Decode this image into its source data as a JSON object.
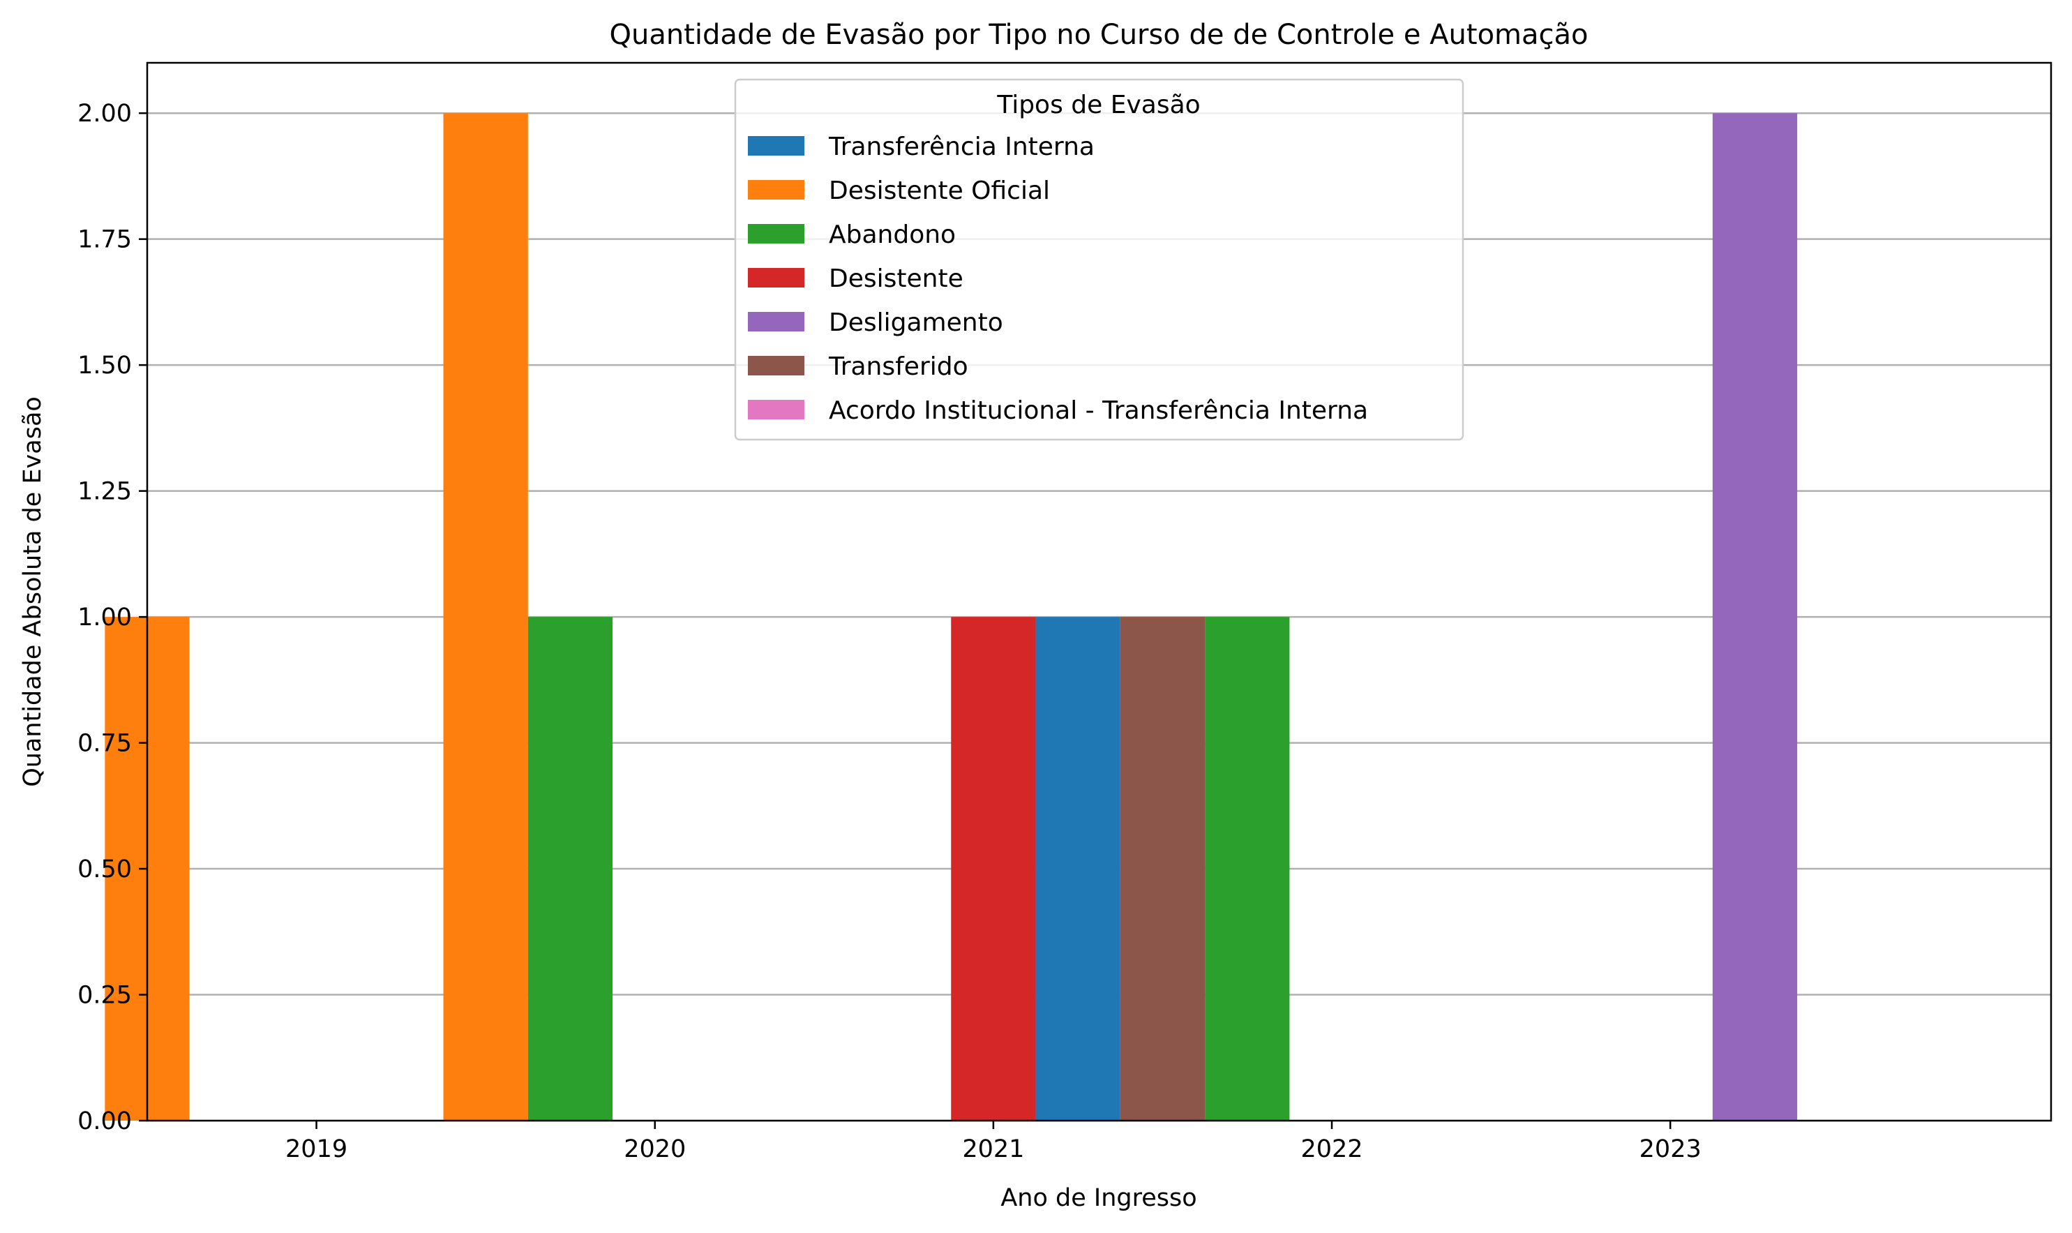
{
  "chart_data": {
    "type": "bar",
    "title": "Quantidade de Evasão por Tipo no Curso de de Controle e Automação",
    "xlabel": "Ano de Ingresso",
    "ylabel": "Quantidade Absoluta de Evasão",
    "categories": [
      "2019",
      "2020",
      "2021",
      "2022",
      "2023"
    ],
    "ylim": [
      0,
      2.1
    ],
    "yticks": [
      "0.00",
      "0.25",
      "0.50",
      "0.75",
      "1.00",
      "1.25",
      "1.50",
      "1.75",
      "2.00"
    ],
    "grid": "y",
    "legend": {
      "title": "Tipos de Evasão",
      "placement": "upper-center"
    },
    "series": [
      {
        "name": "Transferência Interna",
        "color": "#1f77b4",
        "values": [
          0,
          0,
          0,
          1,
          0
        ]
      },
      {
        "name": "Desistente Oficial",
        "color": "#ff7f0e",
        "values": [
          1,
          2,
          0,
          1,
          0
        ]
      },
      {
        "name": "Abandono",
        "color": "#2ca02c",
        "values": [
          0,
          1,
          0,
          1,
          0
        ]
      },
      {
        "name": "Desistente",
        "color": "#d62728",
        "values": [
          0,
          0,
          1,
          0,
          0
        ]
      },
      {
        "name": "Desligamento",
        "color": "#9467bd",
        "values": [
          0,
          0,
          0,
          0,
          2
        ]
      },
      {
        "name": "Transferido",
        "color": "#8c564b",
        "values": [
          0,
          0,
          1,
          0,
          0
        ]
      },
      {
        "name": "Acordo Institucional - Transferência Interna",
        "color": "#e377c2",
        "values": [
          0,
          0,
          0,
          0,
          0
        ]
      }
    ]
  }
}
